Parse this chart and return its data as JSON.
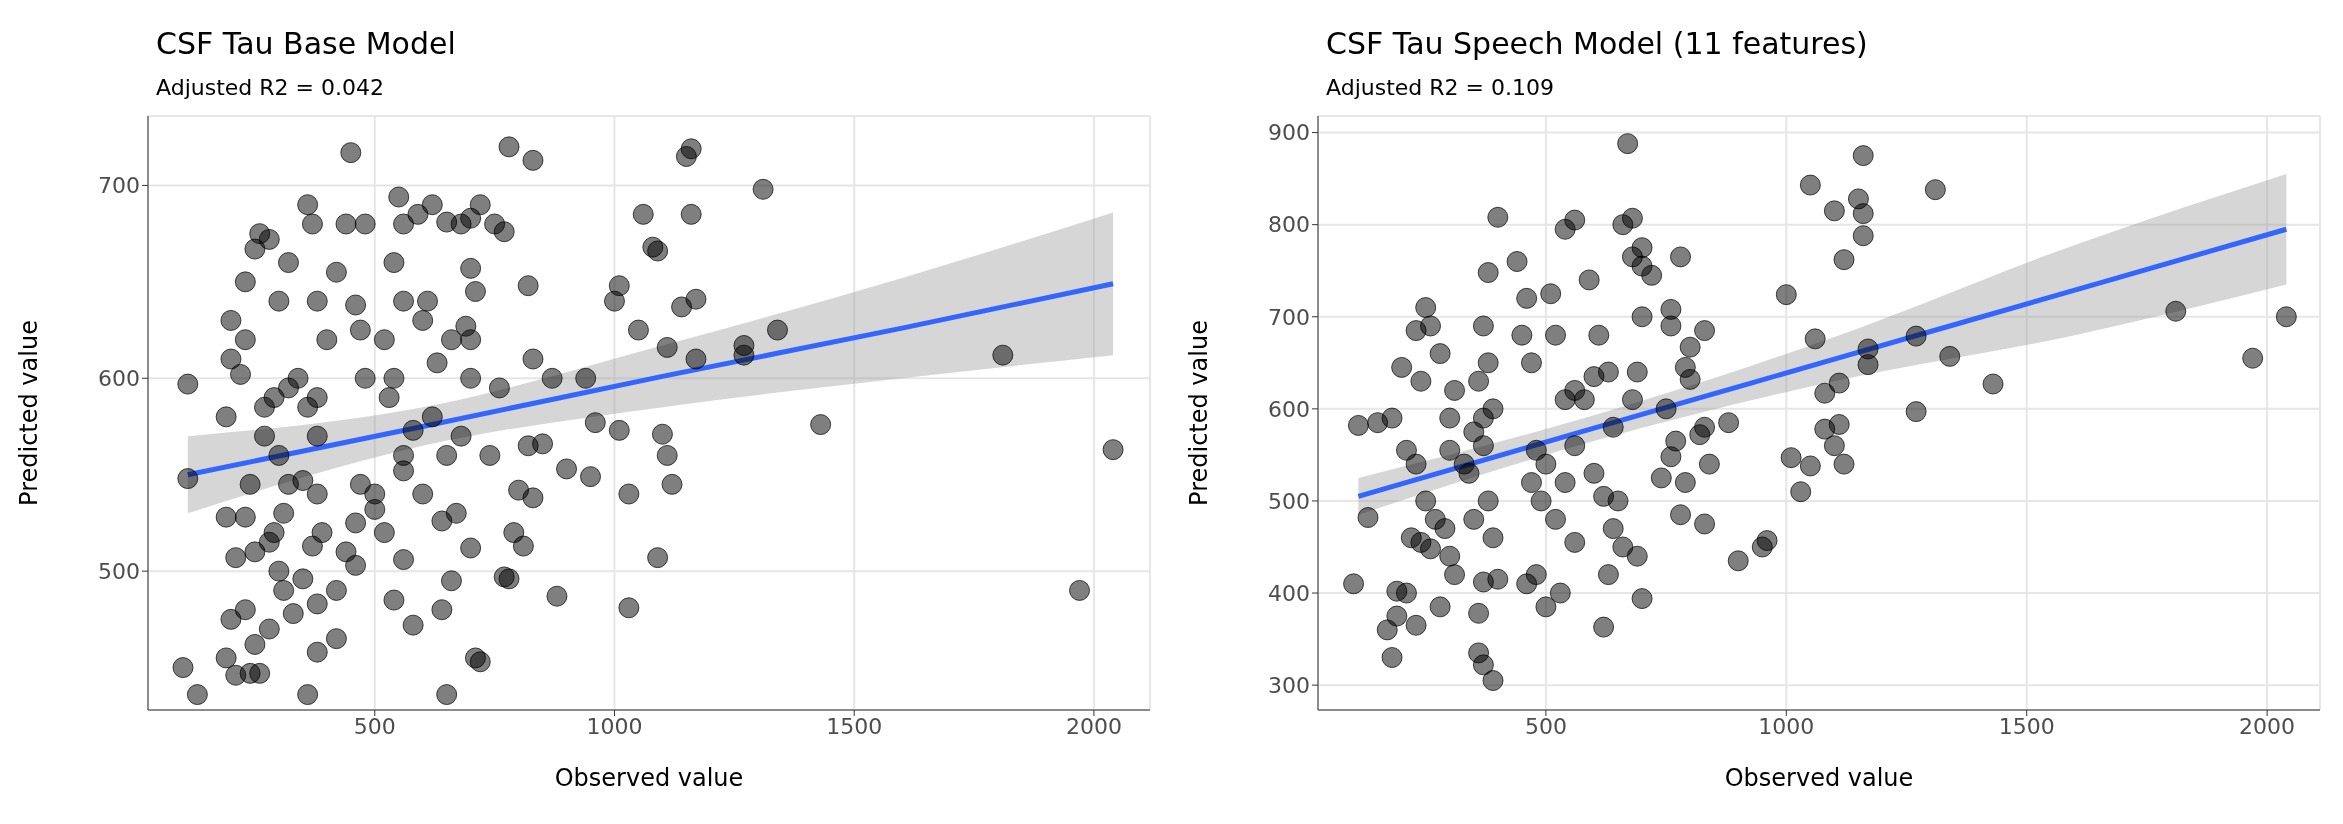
{
  "chart_data": [
    {
      "type": "scatter",
      "title": "CSF Tau Base Model",
      "subtitle": "Adjusted R2 = 0.042",
      "xlabel": "Observed value",
      "ylabel": "Predicted value",
      "xlim": [
        27,
        2117
      ],
      "xticks": [
        500,
        1000,
        1500,
        2000
      ],
      "ylim": [
        428,
        736
      ],
      "yticks": [
        500,
        600,
        700
      ],
      "grid": true,
      "series": [
        {
          "type": "scatter",
          "marker": "circle",
          "color": "#000000",
          "x": [
            1970,
            2040,
            1810,
            1430,
            1340,
            1310,
            1270,
            1270,
            1160,
            1150,
            1160,
            1170,
            1170,
            1140,
            1110,
            1100,
            1110,
            1120,
            1090,
            1080,
            1090,
            1060,
            1030,
            1050,
            1030,
            1010,
            1000,
            1010,
            960,
            940,
            950,
            900,
            880,
            830,
            780,
            820,
            830,
            850,
            820,
            810,
            800,
            830,
            780,
            770,
            760,
            790,
            770,
            750,
            720,
            700,
            700,
            710,
            680,
            650,
            700,
            690,
            700,
            680,
            720,
            710,
            650,
            700,
            670,
            660,
            640,
            640,
            660,
            630,
            610,
            600,
            620,
            590,
            550,
            540,
            560,
            540,
            520,
            580,
            560,
            530,
            500,
            520,
            560,
            580,
            540,
            500,
            470,
            460,
            460,
            480,
            470,
            460,
            450,
            440,
            480,
            420,
            400,
            380,
            380,
            360,
            370,
            360,
            380,
            350,
            380,
            390,
            370,
            350,
            380,
            360,
            380,
            420,
            420,
            440,
            320,
            300,
            280,
            260,
            250,
            230,
            230,
            200,
            200,
            190,
            220,
            290,
            270,
            270,
            300,
            320,
            310,
            290,
            280,
            300,
            310,
            330,
            280,
            240,
            250,
            230,
            210,
            190,
            200,
            230,
            250,
            240,
            260,
            210,
            190,
            130,
            100,
            110,
            110,
            320,
            340,
            600,
            620,
            650,
            560,
            740,
            870,
            560
          ],
          "values": [
            490,
            563,
            612,
            576,
            625,
            698,
            617,
            612,
            719,
            715,
            685,
            641,
            610,
            637,
            616,
            571,
            560,
            545,
            507,
            668,
            666,
            685,
            481,
            625,
            540,
            648,
            640,
            573,
            577,
            600,
            549,
            553,
            487,
            713,
            720,
            648,
            610,
            566,
            565,
            513,
            542,
            538,
            496,
            497,
            595,
            520,
            676,
            680,
            690,
            683,
            657,
            645,
            680,
            681,
            620,
            627,
            600,
            570,
            453,
            455,
            436,
            512,
            530,
            495,
            480,
            526,
            620,
            608,
            640,
            630,
            690,
            685,
            694,
            660,
            640,
            600,
            620,
            573,
            552,
            590,
            532,
            520,
            506,
            472,
            485,
            540,
            545,
            503,
            525,
            600,
            625,
            638,
            717,
            680,
            680,
            655,
            620,
            590,
            640,
            690,
            680,
            585,
            570,
            547,
            540,
            520,
            513,
            496,
            483,
            436,
            458,
            465,
            490,
            510,
            660,
            640,
            672,
            675,
            667,
            650,
            620,
            630,
            610,
            580,
            602,
            590,
            585,
            570,
            560,
            545,
            530,
            520,
            515,
            500,
            490,
            478,
            470,
            545,
            510,
            528,
            507,
            528,
            475,
            480,
            462,
            447,
            447,
            446,
            455,
            436,
            450,
            597,
            548,
            595,
            600,
            540,
            580,
            560,
            560,
            560,
            600,
            680
          ]
        },
        {
          "type": "line",
          "color": "#3366ff",
          "x": [
            110,
            600,
            1100,
            1600,
            2040
          ],
          "values": [
            550,
            575,
            601,
            626,
            649
          ],
          "lower": [
            530,
            565,
            585,
            600,
            612
          ],
          "upper": [
            570,
            585,
            617,
            652,
            686
          ]
        }
      ]
    },
    {
      "type": "scatter",
      "title": "CSF Tau Speech Model (11 features)",
      "subtitle": "Adjusted R2 = 0.109",
      "xlabel": "Observed value",
      "ylabel": "Predicted value",
      "xlim": [
        26,
        2110
      ],
      "xticks": [
        500,
        1000,
        1500,
        2000
      ],
      "ylim": [
        273,
        918
      ],
      "yticks": [
        300,
        400,
        500,
        600,
        700,
        800,
        900
      ],
      "grid": true,
      "series": [
        {
          "type": "scatter",
          "marker": "circle",
          "color": "#000000",
          "x": [
            2040,
            1970,
            1810,
            1430,
            1340,
            1310,
            1270,
            1270,
            1160,
            1150,
            1160,
            1160,
            1170,
            1170,
            1100,
            1120,
            1110,
            1110,
            1100,
            1120,
            1050,
            1060,
            1080,
            1080,
            1050,
            1030,
            1010,
            1000,
            960,
            950,
            900,
            880,
            830,
            820,
            830,
            840,
            830,
            800,
            790,
            800,
            780,
            760,
            760,
            750,
            770,
            760,
            790,
            780,
            740,
            720,
            700,
            700,
            700,
            680,
            660,
            670,
            680,
            690,
            680,
            660,
            690,
            700,
            630,
            620,
            640,
            650,
            640,
            630,
            610,
            590,
            560,
            540,
            510,
            520,
            580,
            560,
            600,
            560,
            540,
            520,
            500,
            480,
            470,
            490,
            480,
            500,
            530,
            460,
            470,
            460,
            440,
            450,
            400,
            380,
            370,
            380,
            360,
            390,
            370,
            350,
            370,
            340,
            350,
            380,
            390,
            370,
            400,
            360,
            360,
            370,
            390,
            330,
            300,
            300,
            310,
            280,
            260,
            250,
            230,
            240,
            200,
            180,
            210,
            230,
            250,
            270,
            260,
            290,
            300,
            310,
            240,
            220,
            210,
            190,
            170,
            180,
            190,
            230,
            280,
            110,
            130,
            100,
            150,
            600,
            620,
            560,
            540
          ],
          "values": [
            700,
            655,
            706,
            627,
            657,
            838,
            679,
            597,
            875,
            828,
            812,
            788,
            665,
            648,
            815,
            762,
            628,
            583,
            560,
            540,
            843,
            676,
            578,
            617,
            538,
            510,
            547,
            724,
            457,
            450,
            435,
            585,
            580,
            572,
            475,
            540,
            685,
            667,
            645,
            632,
            765,
            708,
            690,
            600,
            565,
            548,
            520,
            485,
            525,
            745,
            775,
            755,
            700,
            807,
            800,
            888,
            765,
            640,
            610,
            450,
            440,
            394,
            420,
            363,
            470,
            500,
            580,
            640,
            680,
            740,
            805,
            795,
            725,
            680,
            610,
            620,
            635,
            560,
            520,
            480,
            540,
            555,
            520,
            500,
            420,
            385,
            400,
            410,
            650,
            720,
            760,
            680,
            808,
            748,
            690,
            650,
            630,
            600,
            590,
            575,
            560,
            530,
            480,
            500,
            460,
            412,
            415,
            378,
            335,
            322,
            305,
            540,
            555,
            590,
            620,
            660,
            690,
            710,
            685,
            630,
            645,
            590,
            555,
            540,
            500,
            480,
            448,
            470,
            440,
            420,
            455,
            460,
            400,
            402,
            360,
            330,
            375,
            365,
            385,
            582,
            482,
            410,
            585,
            530,
            505,
            455,
            610
          ]
        },
        {
          "type": "line",
          "color": "#3366ff",
          "x": [
            110,
            600,
            1100,
            1600,
            2040
          ],
          "values": [
            505,
            579,
            654,
            729,
            795
          ],
          "lower": [
            485,
            565,
            630,
            680,
            735
          ],
          "upper": [
            525,
            593,
            678,
            778,
            855
          ]
        }
      ]
    }
  ]
}
